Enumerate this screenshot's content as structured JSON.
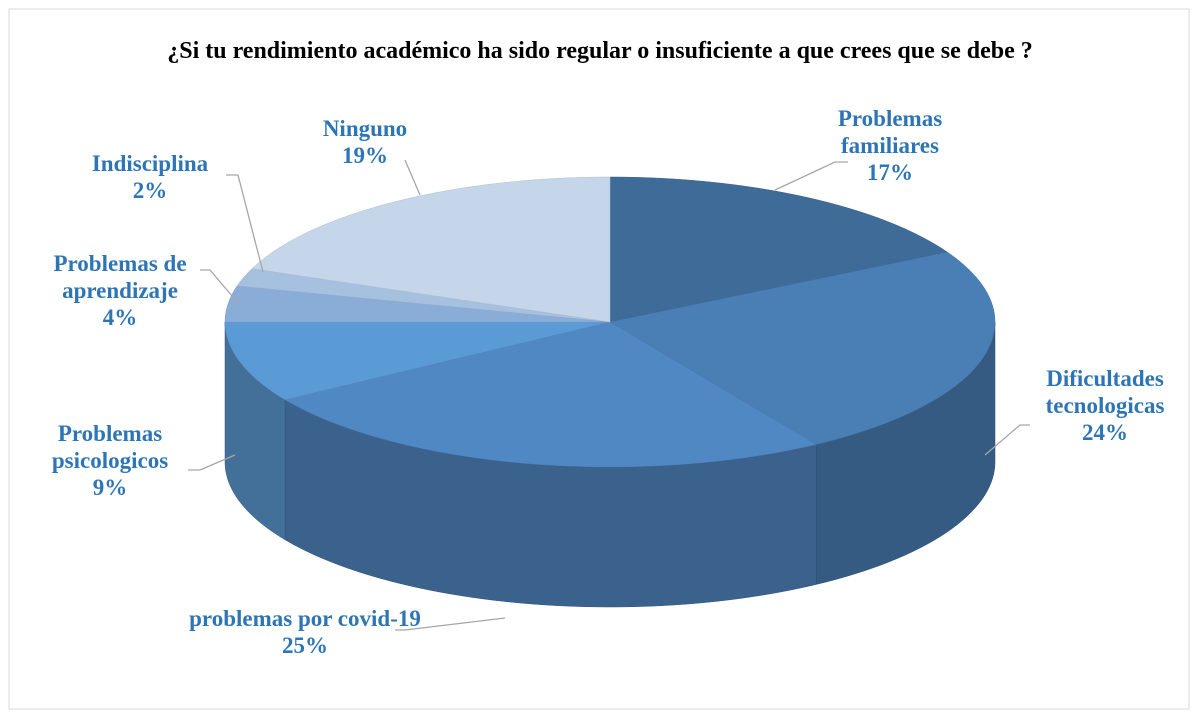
{
  "chart_data": {
    "type": "pie",
    "title": "¿Si tu rendimiento académico ha sido regular o insuficiente a que crees que se debe ?",
    "categories": [
      "Problemas familiares",
      "Dificultades tecnologicas",
      "problemas por covid-19",
      "Problemas psicologicos",
      "Problemas de aprendizaje",
      "Indisciplina",
      "Ninguno"
    ],
    "values": [
      17,
      24,
      25,
      9,
      4,
      2,
      19
    ],
    "value_labels": [
      "17%",
      "24%",
      "25%",
      "9%",
      "4%",
      "2%",
      "19%"
    ],
    "colors": [
      "#3f6b99",
      "#4a7fb5",
      "#5088c4",
      "#5b9bd5",
      "#8aadd8",
      "#a6c0e0",
      "#c5d5ea"
    ]
  }
}
